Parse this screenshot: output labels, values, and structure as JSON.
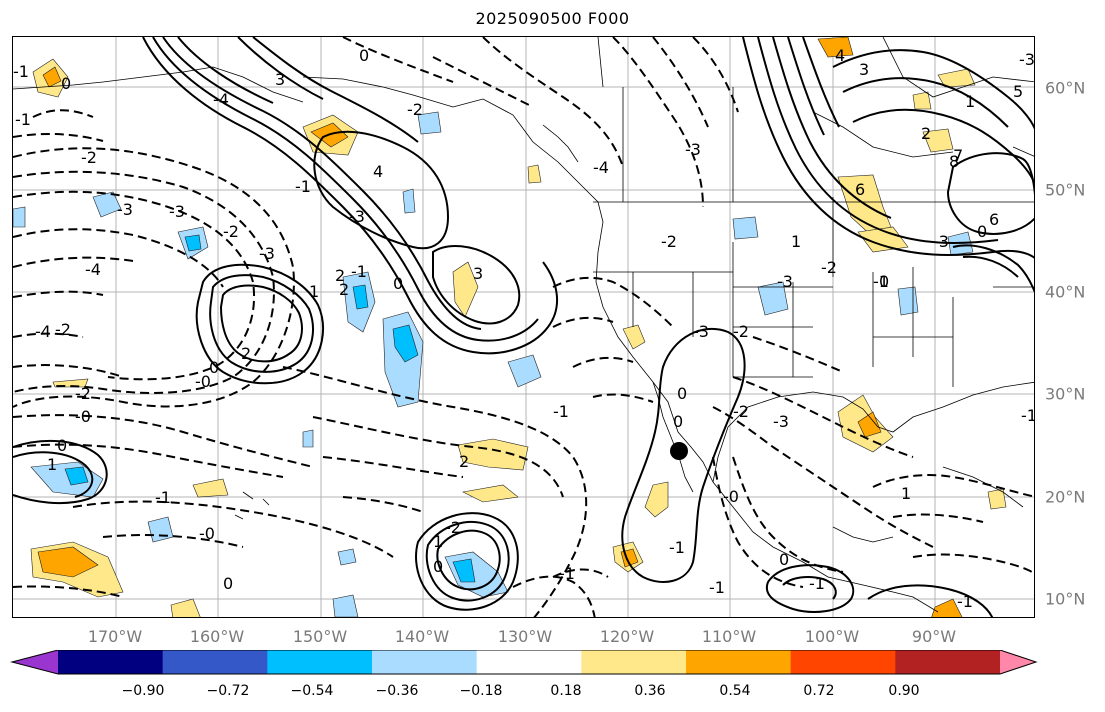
{
  "title": "2025090500 F000",
  "lon_labels": [
    "170°W",
    "160°W",
    "150°W",
    "140°W",
    "130°W",
    "120°W",
    "110°W",
    "100°W",
    "90°W"
  ],
  "lat_labels": [
    "60°N",
    "50°N",
    "40°N",
    "30°N",
    "20°N",
    "10°N"
  ],
  "colorbar": {
    "ticks": [
      "−0.90",
      "−0.72",
      "−0.54",
      "−0.36",
      "−0.18",
      "0.18",
      "0.36",
      "0.54",
      "0.72",
      "0.90"
    ],
    "colors": [
      "#9a35cf",
      "#000080",
      "#3458c8",
      "#00bfff",
      "#aadcff",
      "#ffffff",
      "#ffe88a",
      "#ffa500",
      "#ff4500",
      "#b22222",
      "#ff88aa"
    ]
  },
  "marker": "black-dot",
  "contour_labels": [
    "-1",
    "0",
    "3",
    "-1",
    "-2",
    "-3",
    "-4",
    "-3",
    "-4",
    "-2",
    "-2",
    "-0",
    "0",
    "1",
    "-1",
    "-0",
    "0",
    "-0",
    "-3",
    "-2",
    "2",
    "0",
    "1",
    "2",
    "3",
    "4",
    "-3",
    "-1",
    "0",
    "-2",
    "2",
    "-1",
    "-4",
    "0",
    "-1",
    "2",
    "-2",
    "1",
    "0",
    "-1",
    "-1",
    "-1",
    "-2",
    "-3",
    "-2",
    "-3",
    "-4",
    "-3",
    "-2",
    "1",
    "-1",
    "0",
    "1",
    "2",
    "3",
    "4",
    "5",
    "6",
    "7",
    "8",
    "6",
    "-0",
    "0",
    "-1",
    "1",
    "-1",
    "0",
    "0",
    "-3",
    "-2",
    "-3",
    "-3",
    "-1",
    "0"
  ]
}
